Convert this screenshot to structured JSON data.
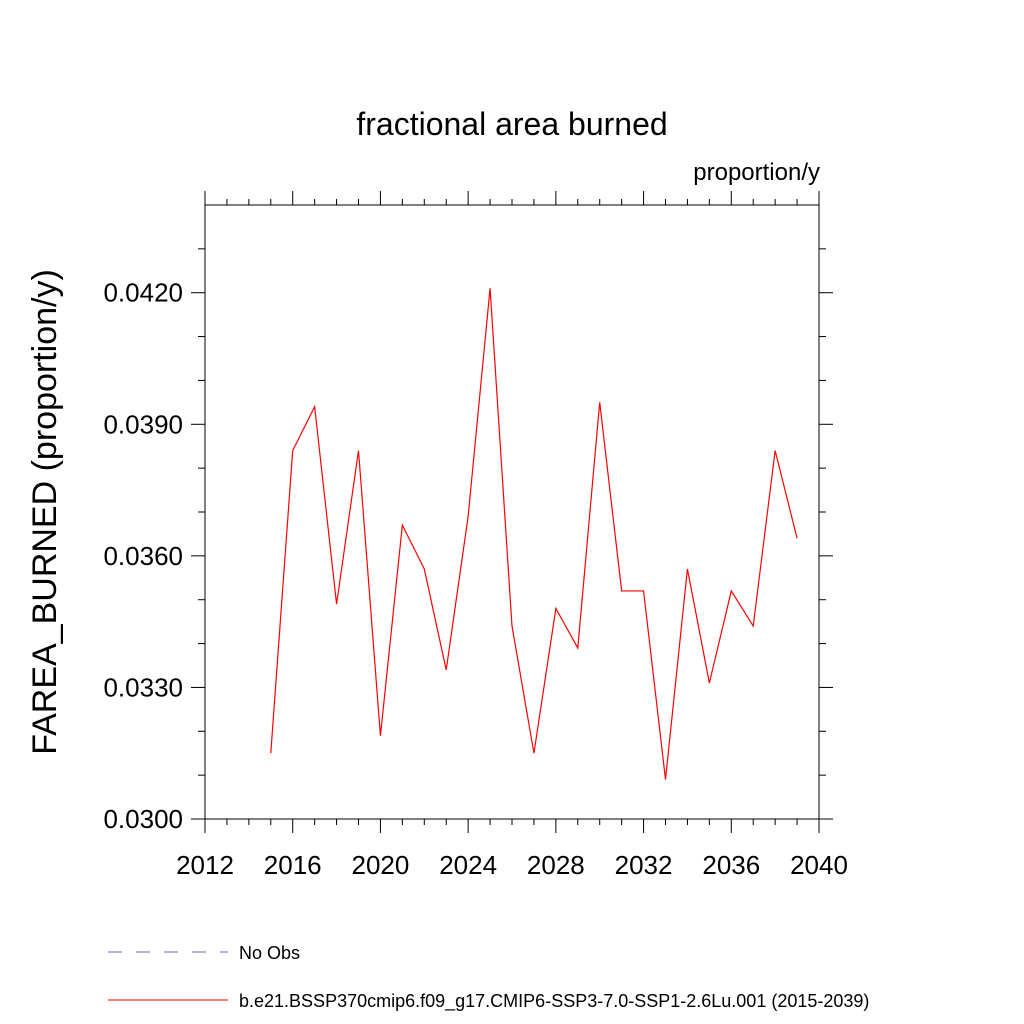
{
  "chart_data": {
    "type": "line",
    "title": "fractional area burned",
    "units_label": "proportion/y",
    "xlabel": "",
    "ylabel": "FAREA_BURNED  (proportion/y)",
    "xlim": [
      2012,
      2040
    ],
    "ylim": [
      0.03,
      0.044
    ],
    "xticks": [
      2012,
      2016,
      2020,
      2024,
      2028,
      2032,
      2036,
      2040
    ],
    "xtick_labels": [
      "2012",
      "2016",
      "2020",
      "2024",
      "2028",
      "2032",
      "2036",
      "2040"
    ],
    "yticks": [
      0.03,
      0.033,
      0.036,
      0.039,
      0.042
    ],
    "ytick_labels": [
      "0.0300",
      "0.0330",
      "0.0360",
      "0.0390",
      "0.0420"
    ],
    "grid": false,
    "legend_position": "bottom",
    "series": [
      {
        "name": "No Obs",
        "color": "#6e64b4",
        "dash": "dashed",
        "x": [],
        "y": []
      },
      {
        "name": "b.e21.BSSP370cmip6.f09_g17.CMIP6-SSP3-7.0-SSP1-2.6Lu.001 (2015-2039)",
        "color": "#ff0000",
        "dash": "solid",
        "x": [
          2015,
          2016,
          2017,
          2018,
          2019,
          2020,
          2021,
          2022,
          2023,
          2024,
          2025,
          2026,
          2027,
          2028,
          2029,
          2030,
          2031,
          2032,
          2033,
          2034,
          2035,
          2036,
          2037,
          2038,
          2039
        ],
        "y": [
          0.0315,
          0.0384,
          0.0394,
          0.0349,
          0.0384,
          0.0319,
          0.0367,
          0.0357,
          0.0334,
          0.0369,
          0.0421,
          0.0344,
          0.0315,
          0.0348,
          0.0339,
          0.0395,
          0.0352,
          0.0352,
          0.0309,
          0.0357,
          0.0331,
          0.0352,
          0.0344,
          0.0384,
          0.0364
        ]
      }
    ]
  }
}
